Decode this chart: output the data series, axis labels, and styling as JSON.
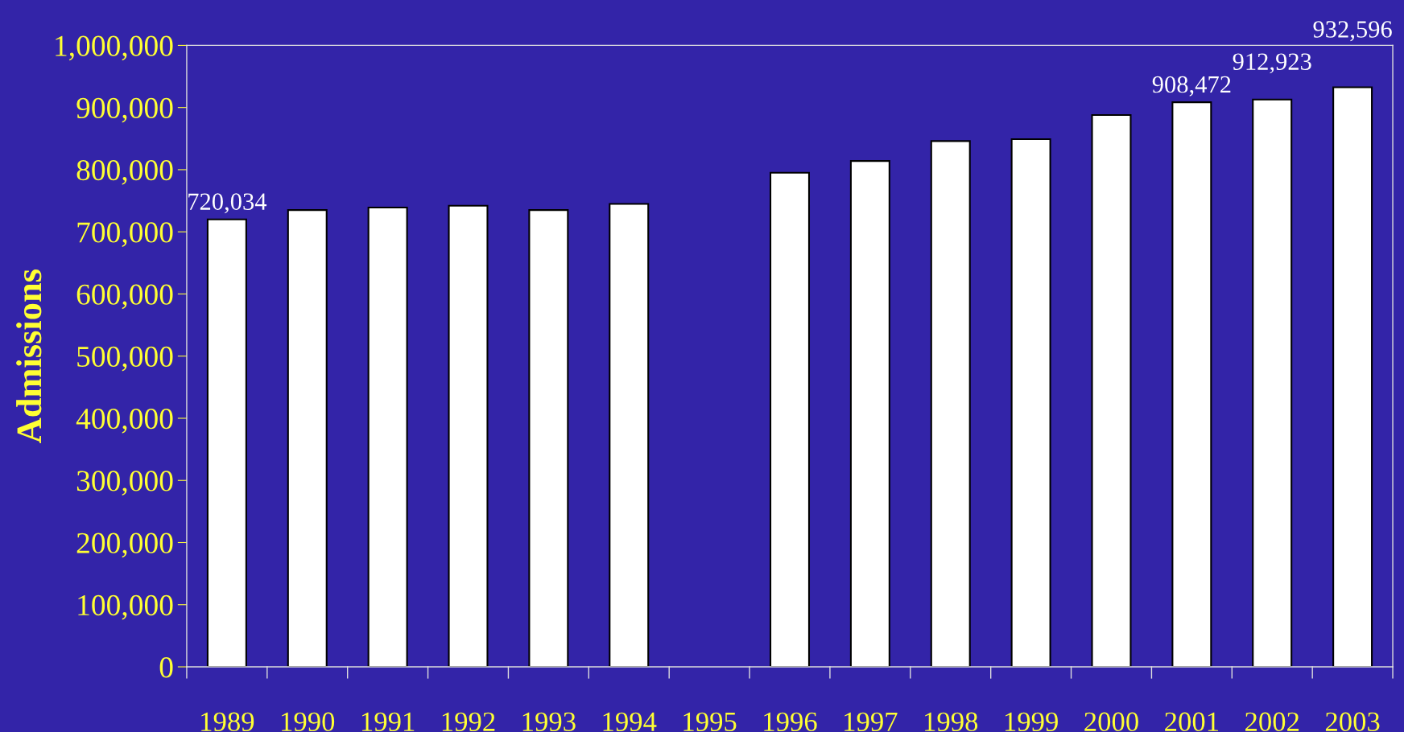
{
  "chart_data": {
    "type": "bar",
    "ylabel": "Admissions",
    "categories": [
      "1989",
      "1990",
      "1991",
      "1992",
      "1993",
      "1994",
      "1995",
      "1996",
      "1997",
      "1998",
      "1999",
      "2000",
      "2001",
      "2002",
      "2003"
    ],
    "values": [
      720034,
      735000,
      739000,
      742000,
      735000,
      745000,
      null,
      795000,
      814000,
      846000,
      849000,
      888000,
      908472,
      912923,
      932596
    ],
    "value_labels": [
      "720,034",
      null,
      null,
      null,
      null,
      null,
      null,
      null,
      null,
      null,
      null,
      null,
      "908,472",
      "912,923",
      "932,596"
    ],
    "color": "#ffffff",
    "ylim": [
      0,
      1000000
    ],
    "yticks": [
      {
        "value": 0,
        "label": "0"
      },
      {
        "value": 100000,
        "label": "100,000"
      },
      {
        "value": 200000,
        "label": "200,000"
      },
      {
        "value": 300000,
        "label": "300,000"
      },
      {
        "value": 400000,
        "label": "400,000"
      },
      {
        "value": 500000,
        "label": "500,000"
      },
      {
        "value": 600000,
        "label": "600,000"
      },
      {
        "value": 700000,
        "label": "700,000"
      },
      {
        "value": 800000,
        "label": "800,000"
      },
      {
        "value": 900000,
        "label": "900,000"
      },
      {
        "value": 1000000,
        "label": "1,000,000"
      }
    ],
    "grid": false
  }
}
